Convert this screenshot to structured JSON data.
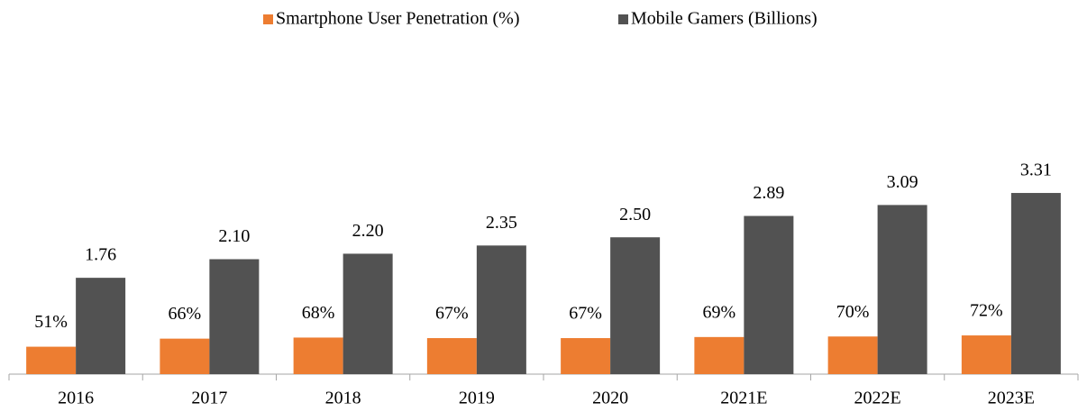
{
  "chart_data": {
    "type": "bar",
    "categories": [
      "2016",
      "2017",
      "2018",
      "2019",
      "2020",
      "2021E",
      "2022E",
      "2023E"
    ],
    "series": [
      {
        "name": "Smartphone User Penetration (%)",
        "color": "#ed7d31",
        "values": [
          51,
          66,
          68,
          67,
          67,
          69,
          70,
          72
        ],
        "value_labels": [
          "51%",
          "66%",
          "68%",
          "67%",
          "67%",
          "69%",
          "70%",
          "72%"
        ]
      },
      {
        "name": "Mobile Gamers (Billions)",
        "color": "#525252",
        "axis": "y2",
        "values": [
          1.76,
          2.1,
          2.2,
          2.35,
          2.5,
          2.89,
          3.09,
          3.31
        ],
        "value_labels": [
          "1.76",
          "2.10",
          "2.20",
          "2.35",
          "2.50",
          "2.89",
          "3.09",
          "3.31"
        ]
      }
    ],
    "ylim": [
      0,
      570
    ],
    "y2lim": [
      0,
      5.6
    ],
    "legend": "top"
  }
}
